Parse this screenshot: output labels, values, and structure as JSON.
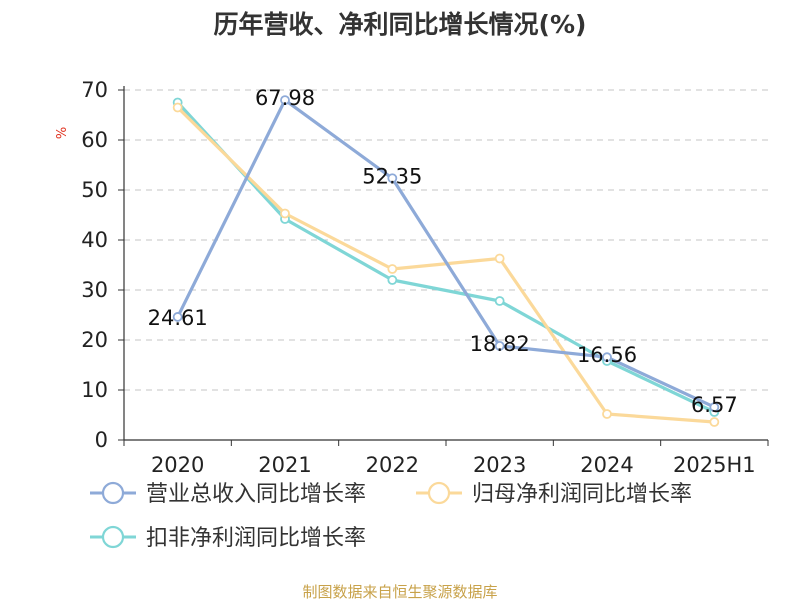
{
  "chart_data": {
    "type": "line",
    "title": "历年营收、净利同比增长情况(%)",
    "xlabel": "",
    "ylabel": "%",
    "categories": [
      "2020",
      "2021",
      "2022",
      "2023",
      "2024",
      "2025H1"
    ],
    "ylim": [
      0,
      70
    ],
    "yticks": [
      0,
      10,
      20,
      30,
      40,
      50,
      60,
      70
    ],
    "grid": true,
    "legend_position": "bottom",
    "series": [
      {
        "name": "营业总收入同比增长率",
        "color": "#8eaad8",
        "values": [
          24.61,
          67.98,
          52.35,
          18.82,
          16.56,
          6.57
        ],
        "labels": [
          "24.61",
          "67.98",
          "52.35",
          "18.82",
          "16.56",
          "6.57"
        ]
      },
      {
        "name": "归母净利润同比增长率",
        "color": "#fbd99a",
        "values": [
          66.5,
          45.3,
          34.2,
          36.3,
          5.2,
          3.6
        ]
      },
      {
        "name": "扣非净利润同比增长率",
        "color": "#7fd6d6",
        "values": [
          67.5,
          44.2,
          32.0,
          27.8,
          15.8,
          5.6
        ]
      }
    ]
  },
  "footer": {
    "source": "制图数据来自恒生聚源数据库"
  }
}
